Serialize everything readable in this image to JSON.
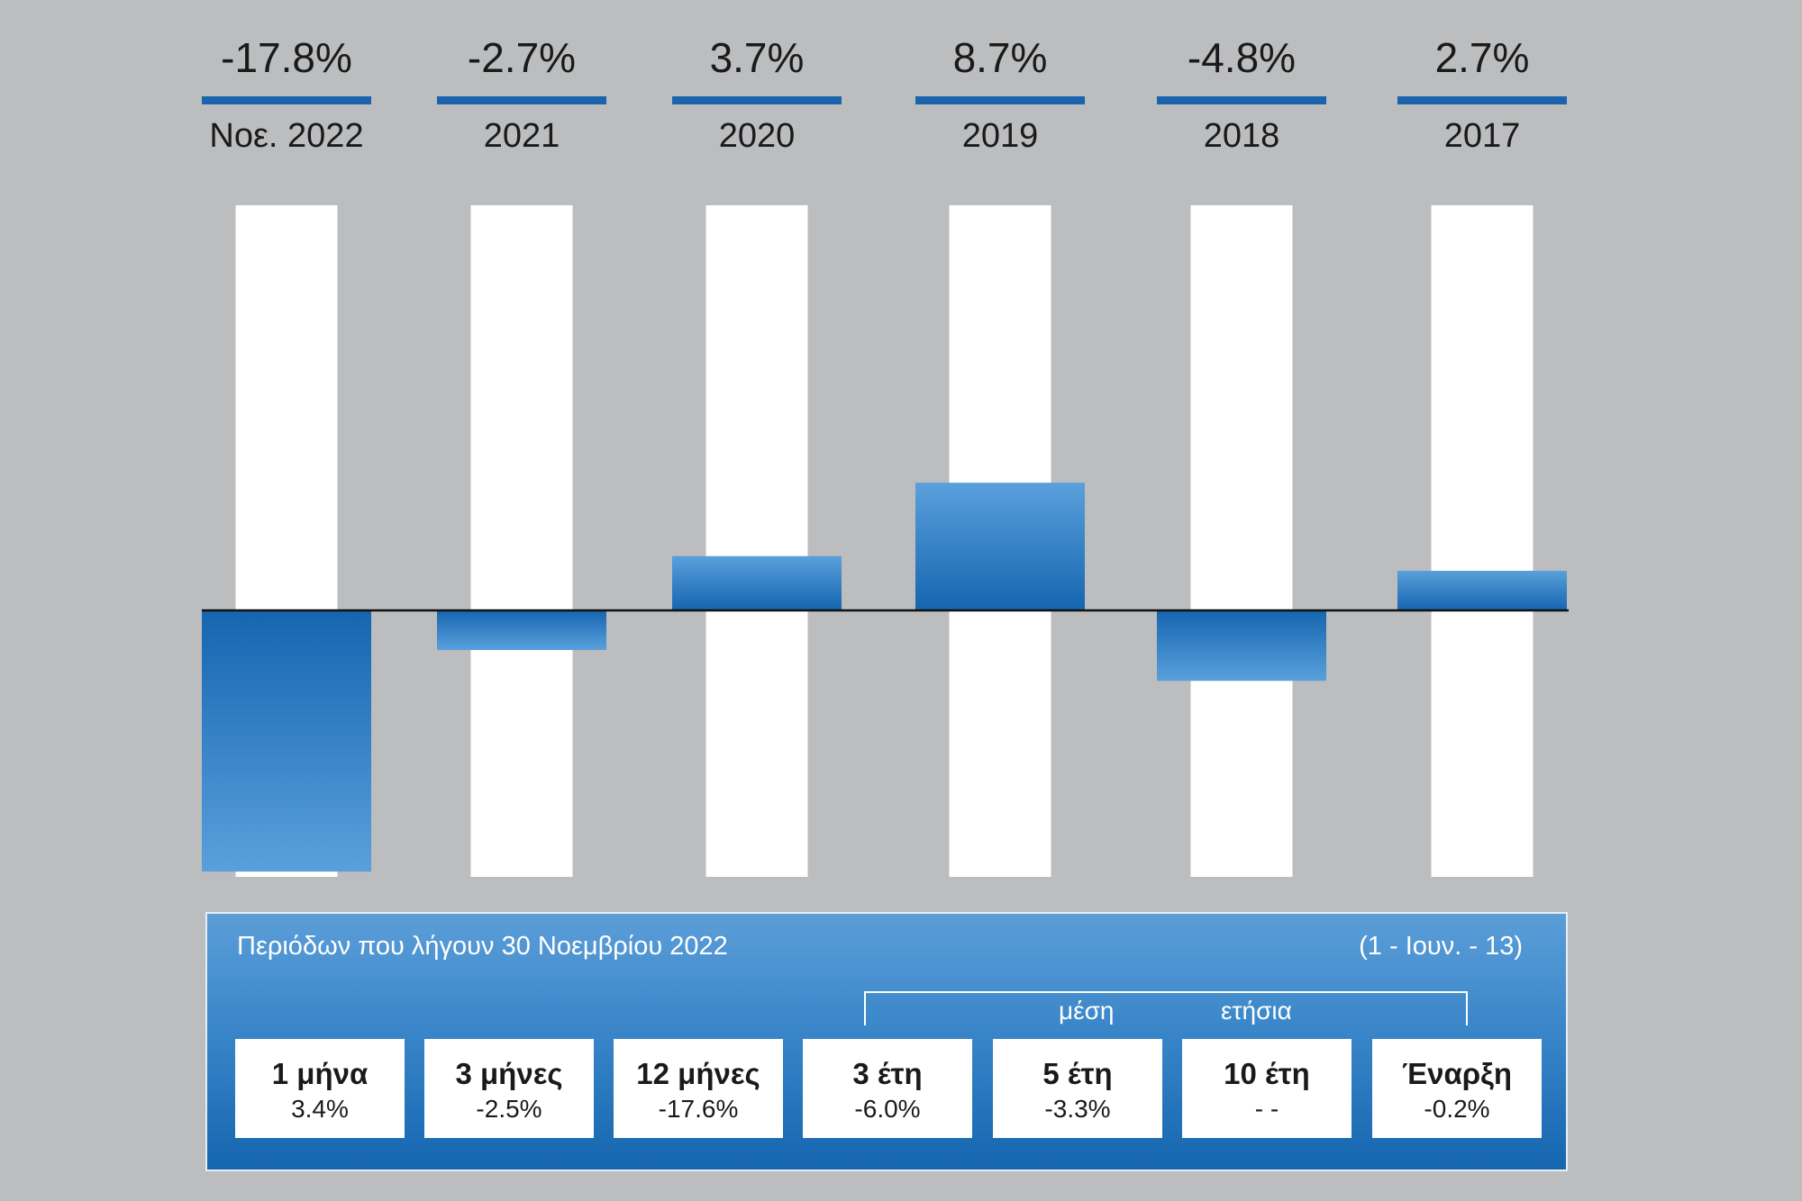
{
  "chart_data": {
    "type": "bar",
    "categories": [
      "Νοε. 2022",
      "2021",
      "2020",
      "2019",
      "2018",
      "2017"
    ],
    "values": [
      -17.8,
      -2.7,
      3.7,
      8.7,
      -4.8,
      2.7
    ],
    "value_labels": [
      "-17.8%",
      "-2.7%",
      "3.7%",
      "8.7%",
      "-4.8%",
      "2.7%"
    ],
    "unit": "%",
    "baseline": 0,
    "colors": {
      "bar_light": "#5aa0dc",
      "bar_dark": "#1565b0",
      "background_column": "#ffffff",
      "header_rule": "#1b64ad",
      "zero_line": "#111111",
      "page_background": "#bcbdbf"
    }
  },
  "periods": {
    "caption": "Περιόδων που λήγουν 30 Νοεμβρίου 2022",
    "inception_range": "(1 - Ιουν. - 13)",
    "bracket_words": [
      "μέση",
      "ετήσια"
    ],
    "items": [
      {
        "label": "1 μήνα",
        "value": "3.4%"
      },
      {
        "label": "3 μήνες",
        "value": "-2.5%"
      },
      {
        "label": "12 μήνες",
        "value": "-17.6%"
      },
      {
        "label": "3 έτη",
        "value": "-6.0%"
      },
      {
        "label": "5 έτη",
        "value": "-3.3%"
      },
      {
        "label": "10 έτη",
        "value": "- -"
      },
      {
        "label": "Έναρξη",
        "value": "-0.2%"
      }
    ]
  }
}
